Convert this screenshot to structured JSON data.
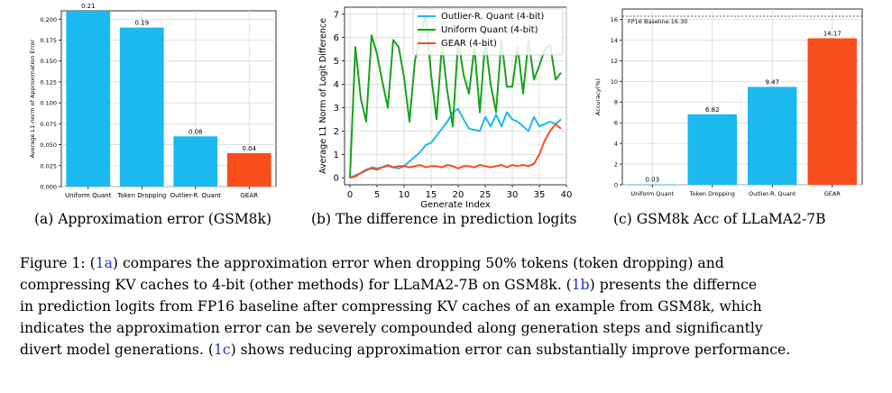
{
  "chart_data": [
    {
      "id": "a",
      "type": "bar",
      "title": "",
      "xlabel": "",
      "ylabel": "Average L1-norm of Approximation Error",
      "categories": [
        "Uniform Quant",
        "Token Dropping",
        "Outlier-R. Quant",
        "GEAR"
      ],
      "values": [
        0.21,
        0.19,
        0.06,
        0.04
      ],
      "value_labels": [
        "0.21",
        "0.19",
        "0.06",
        "0.04"
      ],
      "colors": [
        "#1ab9f0",
        "#1ab9f0",
        "#1ab9f0",
        "#fa4d1c"
      ],
      "ylim": [
        0,
        0.21
      ],
      "yticks": [
        0.0,
        0.025,
        0.05,
        0.075,
        0.1,
        0.125,
        0.15,
        0.175,
        0.2
      ],
      "ytick_labels": [
        "0.000",
        "0.025",
        "0.050",
        "0.075",
        "0.100",
        "0.125",
        "0.150",
        "0.175",
        "0.200"
      ],
      "grid": true
    },
    {
      "id": "b",
      "type": "line",
      "title": "",
      "xlabel": "Generate Index",
      "ylabel": "Average L1 Norm of Logit Difference",
      "x": [
        0,
        1,
        2,
        3,
        4,
        5,
        6,
        7,
        8,
        9,
        10,
        11,
        12,
        13,
        14,
        15,
        16,
        17,
        18,
        19,
        20,
        21,
        22,
        23,
        24,
        25,
        26,
        27,
        28,
        29,
        30,
        31,
        32,
        33,
        34,
        35,
        36,
        37,
        38,
        39
      ],
      "series": [
        {
          "name": "Outlier-R. Quant (4-bit)",
          "color": "#1ab9f0",
          "values": [
            0,
            0.1,
            0.2,
            0.3,
            0.45,
            0.4,
            0.45,
            0.5,
            0.45,
            0.4,
            0.5,
            0.7,
            0.9,
            1.1,
            1.4,
            1.5,
            1.8,
            2.1,
            2.4,
            2.8,
            2.95,
            2.5,
            2.1,
            2.05,
            2.0,
            2.6,
            2.2,
            2.7,
            2.2,
            2.8,
            2.5,
            2.4,
            2.2,
            2.0,
            2.6,
            2.2,
            2.3,
            2.4,
            2.3,
            2.5
          ]
        },
        {
          "name": "Uniform Quant (4-bit)",
          "color": "#19a21b",
          "values": [
            0,
            5.6,
            3.4,
            2.4,
            6.1,
            5.3,
            4.1,
            3.0,
            5.9,
            5.6,
            4.3,
            2.4,
            5.0,
            6.0,
            7.0,
            4.4,
            2.5,
            5.7,
            3.7,
            2.2,
            5.9,
            4.4,
            3.6,
            5.6,
            2.8,
            5.9,
            4.0,
            2.8,
            5.9,
            3.9,
            3.9,
            5.6,
            3.6,
            5.9,
            4.2,
            4.8,
            5.5,
            5.7,
            4.2,
            4.5
          ]
        },
        {
          "name": "GEAR (4-bit)",
          "color": "#fa4d1c",
          "values": [
            0,
            0.05,
            0.2,
            0.35,
            0.4,
            0.35,
            0.45,
            0.55,
            0.45,
            0.5,
            0.5,
            0.45,
            0.5,
            0.55,
            0.45,
            0.5,
            0.5,
            0.45,
            0.55,
            0.5,
            0.4,
            0.5,
            0.5,
            0.45,
            0.55,
            0.5,
            0.45,
            0.5,
            0.55,
            0.45,
            0.55,
            0.5,
            0.55,
            0.5,
            0.6,
            1.0,
            1.6,
            2.0,
            2.3,
            2.1
          ]
        }
      ],
      "xlim": [
        -1,
        40
      ],
      "ylim": [
        -0.3,
        7.3
      ],
      "xticks": [
        0,
        5,
        10,
        15,
        20,
        25,
        30,
        35,
        40
      ],
      "yticks": [
        0,
        1,
        2,
        3,
        4,
        5,
        6,
        7
      ],
      "legend": "top-right",
      "grid": true
    },
    {
      "id": "c",
      "type": "bar",
      "title": "",
      "xlabel": "",
      "ylabel": "Accuracy(%)",
      "categories": [
        "Uniform Quant",
        "Token Dropping",
        "Outlier-R. Quant",
        "GEAR"
      ],
      "values": [
        0.03,
        6.82,
        9.47,
        14.17
      ],
      "value_labels": [
        "0.03",
        "6.82",
        "9.47",
        "14.17"
      ],
      "colors": [
        "#1ab9f0",
        "#1ab9f0",
        "#1ab9f0",
        "#fa4d1c"
      ],
      "ylim": [
        0,
        17
      ],
      "yticks": [
        0,
        2,
        4,
        6,
        8,
        10,
        12,
        14,
        16
      ],
      "ytick_labels": [
        "0",
        "2",
        "4",
        "6",
        "8",
        "10",
        "12",
        "14",
        "16"
      ],
      "baseline": {
        "value": 16.3,
        "label": "FP16 Baseline:16.30"
      },
      "grid": true
    }
  ],
  "subcaptions": {
    "a": "(a) Approximation error (GSM8k)",
    "b": "(b) The difference in prediction logits",
    "c": "(c) GSM8k Acc of LLaMA2-7B"
  },
  "caption": {
    "l1_pre": "Figure 1: (",
    "l1_ref": "1a",
    "l1_post": ") compares the approximation error when dropping 50% tokens (token dropping) and",
    "l2_pre": "compressing KV caches to 4-bit (other methods) for LLaMA2-7B on GSM8k. (",
    "l2_ref": "1b",
    "l2_post": ") presents the differnce",
    "l3": "in prediction logits from FP16 baseline after compressing KV caches of an example from GSM8k, which",
    "l4": "indicates the approximation error can be severely compounded along generation steps and significantly",
    "l5_pre": "divert model generations. (",
    "l5_ref": "1c",
    "l5_post": ") shows reducing approximation error can substantially improve performance."
  }
}
